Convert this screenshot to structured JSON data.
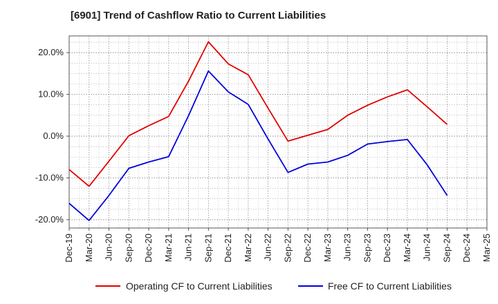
{
  "chart_data": {
    "type": "line",
    "title": "[6901]  Trend of Cashflow Ratio to Current Liabilities",
    "xlabel": "",
    "ylabel": "",
    "categories": [
      "Dec-19",
      "Mar-20",
      "Jun-20",
      "Sep-20",
      "Dec-20",
      "Mar-21",
      "Jun-21",
      "Sep-21",
      "Dec-21",
      "Mar-22",
      "Jun-22",
      "Sep-22",
      "Dec-22",
      "Mar-23",
      "Jun-23",
      "Sep-23",
      "Dec-23",
      "Mar-24",
      "Jun-24",
      "Sep-24",
      "Dec-24",
      "Mar-25"
    ],
    "yticks": [
      20,
      10,
      0,
      -10,
      -20
    ],
    "ytick_labels": [
      "20.0%",
      "10.0%",
      "0.0%",
      "-10.0%",
      "-20.0%"
    ],
    "ylim": [
      -22,
      24
    ],
    "grid": true,
    "legend_position": "bottom-center",
    "series": [
      {
        "name": "Operating CF to Current Liabilities",
        "color": "#e00000",
        "values": [
          -8.0,
          -12.0,
          -6.0,
          0.1,
          2.5,
          4.7,
          13.2,
          22.6,
          17.3,
          14.7,
          6.7,
          -1.2,
          0.2,
          1.6,
          5.0,
          7.4,
          9.4,
          11.1,
          7.0,
          2.8,
          null,
          null
        ]
      },
      {
        "name": "Free CF to Current Liabilities",
        "color": "#0000dd",
        "values": [
          -16.1,
          -20.2,
          -14.2,
          -7.7,
          -6.2,
          -4.9,
          4.9,
          15.6,
          10.6,
          7.6,
          -0.7,
          -8.7,
          -6.7,
          -6.2,
          -4.6,
          -1.9,
          -1.3,
          -0.8,
          -6.9,
          -14.2,
          null,
          null
        ]
      }
    ]
  }
}
